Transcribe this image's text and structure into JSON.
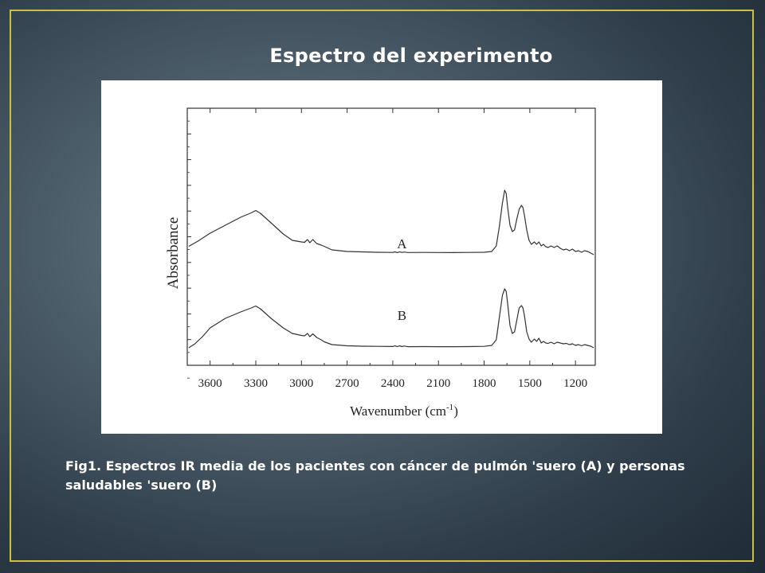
{
  "slide": {
    "title": "Espectro del experimento",
    "caption": "Fig1. Espectros IR media de los pacientes con cáncer de pulmón 'suero (A) y personas saludables 'suero (B)"
  },
  "colors": {
    "frame": "#c9c23a",
    "text": "#ffffff",
    "plot_line": "#333333"
  },
  "chart_data": {
    "type": "line",
    "xlabel": "Wavenumber (cm",
    "xlabel_sup": "-1",
    "xlabel_end": ")",
    "ylabel": "Absorbance",
    "x_reversed": true,
    "xlim": [
      3750,
      1070
    ],
    "x_ticks": [
      3600,
      3300,
      3000,
      2700,
      2400,
      2100,
      1800,
      1500,
      1200
    ],
    "y_tick_labels": false,
    "grid": false,
    "series_labels": [
      "A",
      "B"
    ],
    "series": [
      {
        "name": "A",
        "label_x": 2340,
        "x": [
          3740,
          3680,
          3600,
          3500,
          3400,
          3330,
          3300,
          3270,
          3200,
          3120,
          3060,
          3000,
          2980,
          2960,
          2945,
          2925,
          2900,
          2870,
          2850,
          2800,
          2700,
          2600,
          2500,
          2400,
          2385,
          2370,
          2355,
          2340,
          2325,
          2300,
          2200,
          2100,
          2000,
          1900,
          1800,
          1750,
          1720,
          1700,
          1680,
          1665,
          1655,
          1645,
          1630,
          1615,
          1600,
          1585,
          1570,
          1555,
          1545,
          1535,
          1520,
          1505,
          1490,
          1470,
          1455,
          1440,
          1425,
          1410,
          1395,
          1380,
          1360,
          1340,
          1320,
          1300,
          1280,
          1260,
          1240,
          1220,
          1200,
          1180,
          1160,
          1140,
          1120,
          1100,
          1080
        ],
        "y": [
          0.375,
          0.44,
          0.54,
          0.64,
          0.74,
          0.795,
          0.825,
          0.79,
          0.67,
          0.53,
          0.45,
          0.43,
          0.425,
          0.46,
          0.42,
          0.46,
          0.41,
          0.39,
          0.375,
          0.33,
          0.31,
          0.305,
          0.3,
          0.298,
          0.305,
          0.296,
          0.306,
          0.298,
          0.303,
          0.297,
          0.298,
          0.297,
          0.296,
          0.298,
          0.3,
          0.31,
          0.38,
          0.62,
          0.92,
          1.08,
          1.04,
          0.86,
          0.64,
          0.56,
          0.58,
          0.72,
          0.84,
          0.89,
          0.86,
          0.76,
          0.58,
          0.45,
          0.4,
          0.43,
          0.4,
          0.43,
          0.38,
          0.4,
          0.37,
          0.36,
          0.38,
          0.36,
          0.38,
          0.35,
          0.33,
          0.34,
          0.32,
          0.34,
          0.31,
          0.32,
          0.3,
          0.32,
          0.31,
          0.29,
          0.27
        ]
      },
      {
        "name": "B",
        "label_x": 2340,
        "x": [
          3740,
          3700,
          3650,
          3600,
          3500,
          3400,
          3330,
          3300,
          3270,
          3200,
          3120,
          3060,
          3000,
          2980,
          2960,
          2945,
          2925,
          2900,
          2870,
          2850,
          2800,
          2700,
          2600,
          2500,
          2400,
          2385,
          2370,
          2355,
          2340,
          2325,
          2300,
          2200,
          2100,
          2000,
          1900,
          1800,
          1750,
          1720,
          1700,
          1680,
          1665,
          1655,
          1645,
          1630,
          1615,
          1600,
          1585,
          1570,
          1555,
          1545,
          1535,
          1520,
          1505,
          1490,
          1470,
          1455,
          1440,
          1425,
          1410,
          1395,
          1380,
          1360,
          1340,
          1320,
          1300,
          1280,
          1260,
          1240,
          1220,
          1200,
          1180,
          1160,
          1140,
          1120,
          1100,
          1080
        ],
        "y": [
          0.0,
          0.05,
          0.14,
          0.25,
          0.37,
          0.45,
          0.5,
          0.525,
          0.49,
          0.37,
          0.25,
          0.18,
          0.155,
          0.15,
          0.18,
          0.14,
          0.175,
          0.13,
          0.1,
          0.075,
          0.04,
          0.025,
          0.02,
          0.018,
          0.016,
          0.024,
          0.014,
          0.025,
          0.015,
          0.022,
          0.014,
          0.015,
          0.014,
          0.014,
          0.015,
          0.018,
          0.03,
          0.1,
          0.38,
          0.66,
          0.74,
          0.71,
          0.55,
          0.28,
          0.18,
          0.2,
          0.35,
          0.5,
          0.53,
          0.5,
          0.4,
          0.2,
          0.11,
          0.07,
          0.11,
          0.08,
          0.12,
          0.06,
          0.08,
          0.06,
          0.055,
          0.07,
          0.05,
          0.07,
          0.06,
          0.05,
          0.055,
          0.04,
          0.05,
          0.03,
          0.04,
          0.025,
          0.04,
          0.03,
          0.02,
          0.0
        ]
      }
    ]
  }
}
